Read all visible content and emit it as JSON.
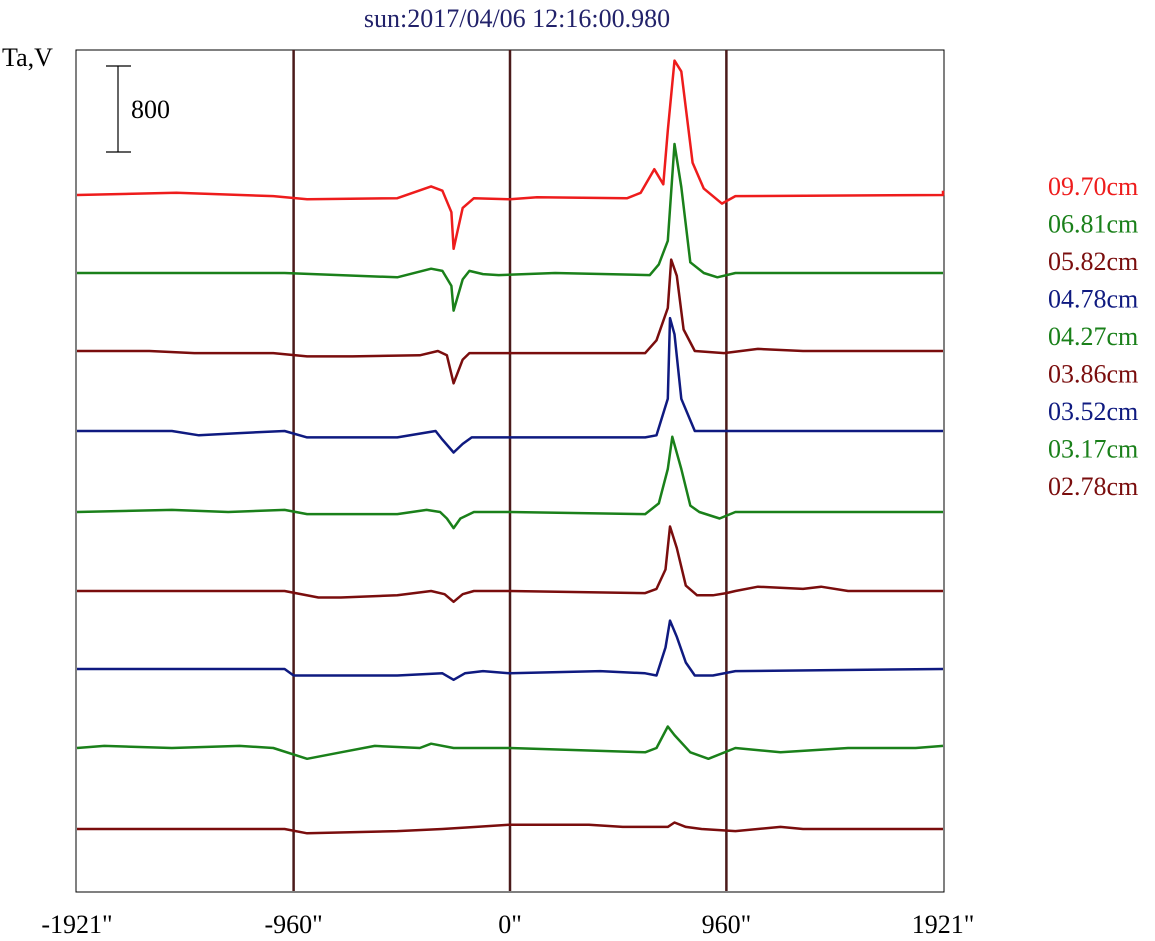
{
  "chart_data": {
    "type": "line",
    "title": "sun:2017/04/06 12:16:00.980",
    "ylabel": "Ta,V",
    "x_ticks": [
      {
        "value": -1921,
        "label": "-1921\""
      },
      {
        "value": -960,
        "label": "-960\""
      },
      {
        "value": 0,
        "label": "0\""
      },
      {
        "value": 960,
        "label": "960\""
      },
      {
        "value": 1921,
        "label": "1921\""
      }
    ],
    "xlim": [
      -1921,
      1921
    ],
    "vertical_lines": [
      -960,
      0,
      960
    ],
    "scale_bar": {
      "value": 800,
      "label": "800"
    },
    "grid": false,
    "legend_position": "right",
    "series": [
      {
        "name": "09.70cm",
        "color": "#ee1c1c",
        "baseline": 0,
        "points": [
          [
            -1921,
            0
          ],
          [
            -1480,
            20
          ],
          [
            -1050,
            -10
          ],
          [
            -900,
            -40
          ],
          [
            -500,
            -30
          ],
          [
            -350,
            80
          ],
          [
            -300,
            40
          ],
          [
            -260,
            -160
          ],
          [
            -250,
            -500
          ],
          [
            -210,
            -120
          ],
          [
            -160,
            -30
          ],
          [
            0,
            -40
          ],
          [
            120,
            -20
          ],
          [
            520,
            -30
          ],
          [
            580,
            20
          ],
          [
            640,
            240
          ],
          [
            680,
            100
          ],
          [
            700,
            600
          ],
          [
            730,
            1250
          ],
          [
            760,
            1150
          ],
          [
            810,
            300
          ],
          [
            860,
            60
          ],
          [
            940,
            -80
          ],
          [
            1000,
            -10
          ],
          [
            1921,
            0
          ],
          [
            1921,
            40
          ]
        ]
      },
      {
        "name": "06.81cm",
        "color": "#1a801a",
        "baseline": 0,
        "points": [
          [
            -1921,
            0
          ],
          [
            -1400,
            0
          ],
          [
            -1000,
            0
          ],
          [
            -500,
            -40
          ],
          [
            -350,
            40
          ],
          [
            -300,
            20
          ],
          [
            -260,
            -120
          ],
          [
            -250,
            -350
          ],
          [
            -210,
            -60
          ],
          [
            -180,
            20
          ],
          [
            -120,
            -10
          ],
          [
            -50,
            -20
          ],
          [
            200,
            0
          ],
          [
            620,
            -20
          ],
          [
            660,
            80
          ],
          [
            700,
            300
          ],
          [
            730,
            1200
          ],
          [
            760,
            800
          ],
          [
            800,
            100
          ],
          [
            860,
            0
          ],
          [
            920,
            -40
          ],
          [
            1000,
            0
          ],
          [
            1921,
            0
          ]
        ]
      },
      {
        "name": "05.82cm",
        "color": "#7a0d0d",
        "baseline": 0,
        "points": [
          [
            -1921,
            0
          ],
          [
            -1600,
            0
          ],
          [
            -1400,
            -20
          ],
          [
            -1050,
            -20
          ],
          [
            -900,
            -50
          ],
          [
            -700,
            -50
          ],
          [
            -400,
            -40
          ],
          [
            -320,
            0
          ],
          [
            -280,
            -40
          ],
          [
            -250,
            -300
          ],
          [
            -210,
            -80
          ],
          [
            -180,
            -20
          ],
          [
            0,
            -20
          ],
          [
            600,
            -20
          ],
          [
            650,
            100
          ],
          [
            700,
            400
          ],
          [
            715,
            850
          ],
          [
            740,
            700
          ],
          [
            770,
            200
          ],
          [
            820,
            0
          ],
          [
            950,
            -20
          ],
          [
            1100,
            20
          ],
          [
            1300,
            0
          ],
          [
            1921,
            0
          ]
        ]
      },
      {
        "name": "04.78cm",
        "color": "#0f1a80",
        "baseline": 0,
        "points": [
          [
            -1921,
            0
          ],
          [
            -1500,
            0
          ],
          [
            -1380,
            -40
          ],
          [
            -1200,
            -20
          ],
          [
            -1000,
            0
          ],
          [
            -900,
            -60
          ],
          [
            -500,
            -60
          ],
          [
            -330,
            0
          ],
          [
            -300,
            -80
          ],
          [
            -250,
            -200
          ],
          [
            -210,
            -120
          ],
          [
            -170,
            -60
          ],
          [
            -120,
            -60
          ],
          [
            0,
            -60
          ],
          [
            600,
            -60
          ],
          [
            650,
            -40
          ],
          [
            700,
            300
          ],
          [
            710,
            1050
          ],
          [
            730,
            900
          ],
          [
            760,
            300
          ],
          [
            820,
            0
          ],
          [
            1300,
            0
          ],
          [
            1921,
            0
          ]
        ]
      },
      {
        "name": "04.27cm",
        "color": "#1a801a",
        "baseline": 0,
        "points": [
          [
            -1921,
            0
          ],
          [
            -1500,
            20
          ],
          [
            -1250,
            0
          ],
          [
            -1000,
            20
          ],
          [
            -900,
            -20
          ],
          [
            -500,
            -20
          ],
          [
            -370,
            20
          ],
          [
            -310,
            0
          ],
          [
            -280,
            -60
          ],
          [
            -250,
            -150
          ],
          [
            -220,
            -60
          ],
          [
            -160,
            0
          ],
          [
            0,
            0
          ],
          [
            600,
            -20
          ],
          [
            660,
            80
          ],
          [
            700,
            400
          ],
          [
            720,
            700
          ],
          [
            760,
            400
          ],
          [
            800,
            60
          ],
          [
            840,
            0
          ],
          [
            930,
            -60
          ],
          [
            1000,
            0
          ],
          [
            1600,
            0
          ],
          [
            1921,
            0
          ]
        ]
      },
      {
        "name": "03.86cm",
        "color": "#7a0d0d",
        "baseline": 0,
        "points": [
          [
            -1921,
            0
          ],
          [
            -1000,
            0
          ],
          [
            -850,
            -60
          ],
          [
            -750,
            -60
          ],
          [
            -500,
            -40
          ],
          [
            -350,
            0
          ],
          [
            -290,
            -30
          ],
          [
            -250,
            -100
          ],
          [
            -210,
            -30
          ],
          [
            -160,
            0
          ],
          [
            0,
            0
          ],
          [
            600,
            -20
          ],
          [
            650,
            20
          ],
          [
            690,
            200
          ],
          [
            710,
            600
          ],
          [
            740,
            400
          ],
          [
            780,
            50
          ],
          [
            830,
            -40
          ],
          [
            900,
            -40
          ],
          [
            960,
            -20
          ],
          [
            1000,
            0
          ],
          [
            1100,
            40
          ],
          [
            1300,
            20
          ],
          [
            1380,
            40
          ],
          [
            1500,
            0
          ],
          [
            1921,
            0
          ]
        ]
      },
      {
        "name": "03.52cm",
        "color": "#0f1a80",
        "baseline": 0,
        "points": [
          [
            -1921,
            0
          ],
          [
            -1000,
            0
          ],
          [
            -960,
            -60
          ],
          [
            -500,
            -60
          ],
          [
            -300,
            -40
          ],
          [
            -250,
            -100
          ],
          [
            -200,
            -40
          ],
          [
            -120,
            -20
          ],
          [
            0,
            -40
          ],
          [
            400,
            -20
          ],
          [
            600,
            -40
          ],
          [
            650,
            -60
          ],
          [
            690,
            200
          ],
          [
            710,
            450
          ],
          [
            740,
            300
          ],
          [
            780,
            60
          ],
          [
            820,
            -60
          ],
          [
            900,
            -60
          ],
          [
            1000,
            -20
          ],
          [
            1921,
            0
          ]
        ]
      },
      {
        "name": "03.17cm",
        "color": "#1a801a",
        "baseline": 0,
        "points": [
          [
            -1921,
            0
          ],
          [
            -1800,
            20
          ],
          [
            -1500,
            0
          ],
          [
            -1200,
            20
          ],
          [
            -1050,
            0
          ],
          [
            -900,
            -100
          ],
          [
            -750,
            -40
          ],
          [
            -600,
            20
          ],
          [
            -400,
            0
          ],
          [
            -350,
            40
          ],
          [
            -250,
            0
          ],
          [
            0,
            0
          ],
          [
            600,
            -40
          ],
          [
            650,
            0
          ],
          [
            700,
            200
          ],
          [
            730,
            120
          ],
          [
            800,
            -40
          ],
          [
            880,
            -100
          ],
          [
            1000,
            0
          ],
          [
            1200,
            -40
          ],
          [
            1500,
            0
          ],
          [
            1800,
            0
          ],
          [
            1921,
            20
          ]
        ]
      },
      {
        "name": "02.78cm",
        "color": "#7a0d0d",
        "baseline": 0,
        "points": [
          [
            -1921,
            0
          ],
          [
            -1300,
            0
          ],
          [
            -1000,
            0
          ],
          [
            -900,
            -40
          ],
          [
            -500,
            -20
          ],
          [
            -300,
            0
          ],
          [
            -150,
            20
          ],
          [
            0,
            40
          ],
          [
            350,
            40
          ],
          [
            500,
            20
          ],
          [
            700,
            20
          ],
          [
            730,
            60
          ],
          [
            780,
            20
          ],
          [
            850,
            0
          ],
          [
            1000,
            -20
          ],
          [
            1200,
            20
          ],
          [
            1300,
            0
          ],
          [
            1921,
            0
          ]
        ]
      }
    ]
  }
}
